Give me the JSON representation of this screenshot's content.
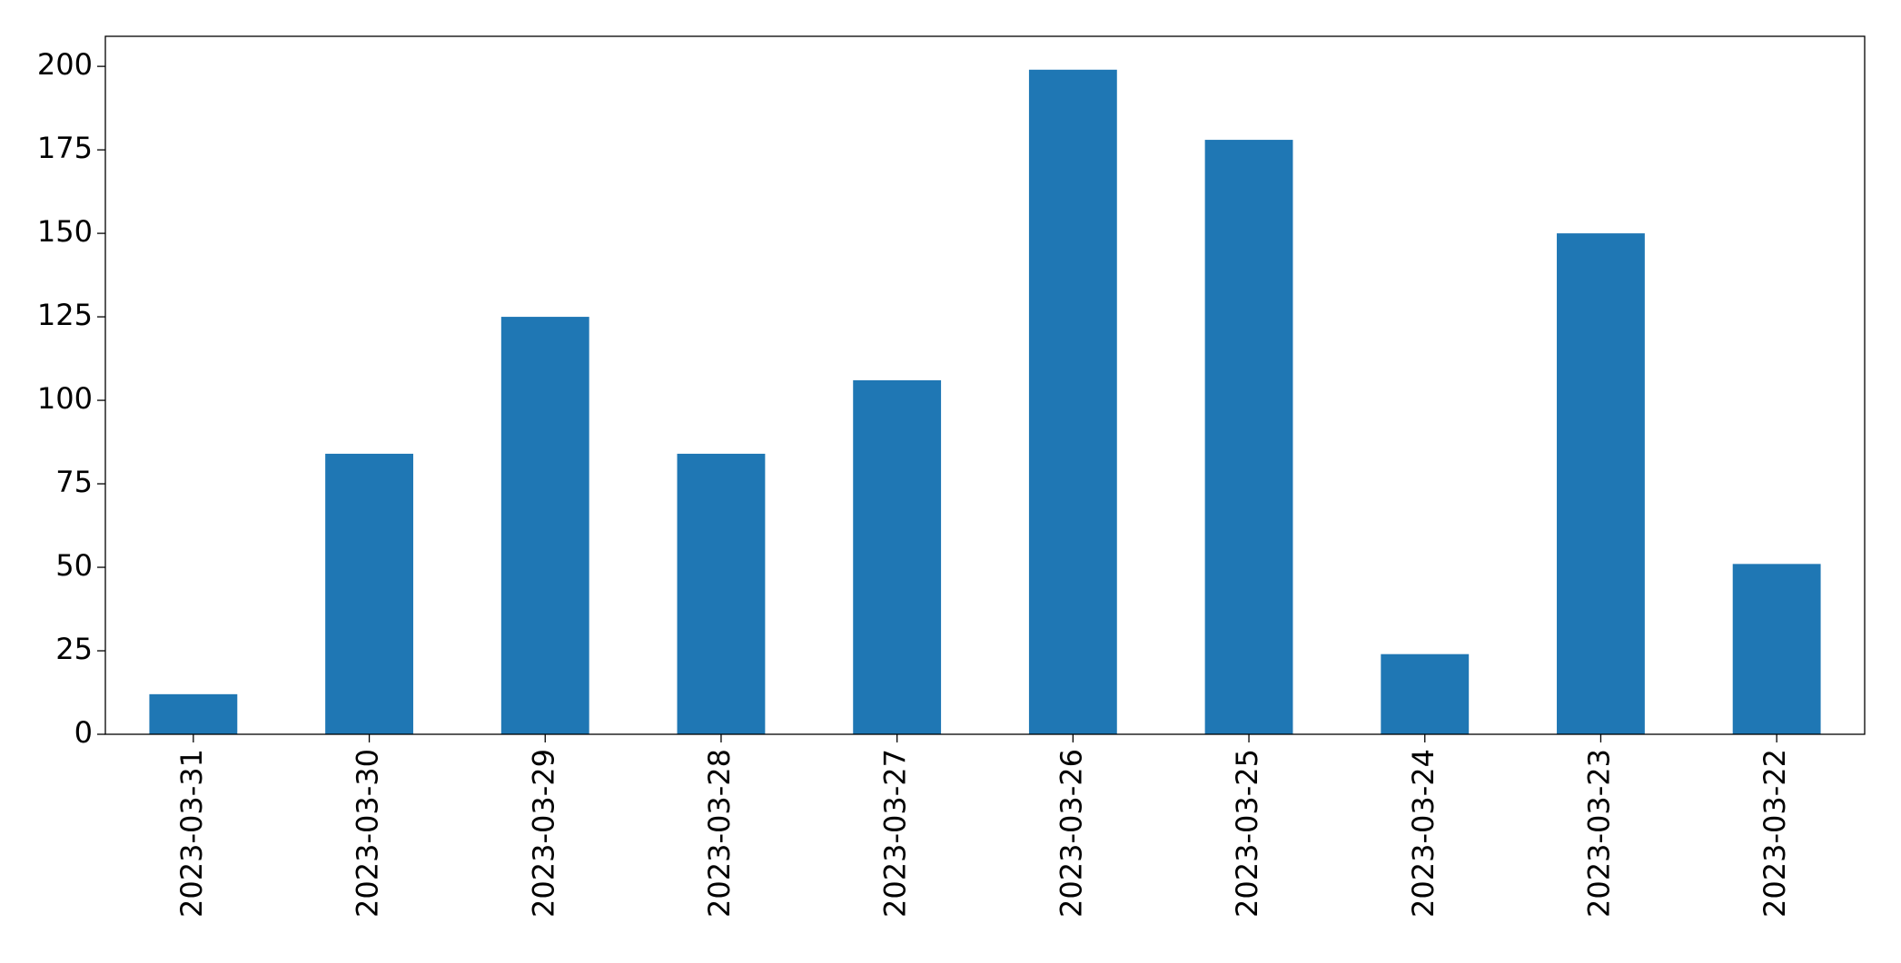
{
  "chart_data": {
    "type": "bar",
    "categories": [
      "2023-03-31",
      "2023-03-30",
      "2023-03-29",
      "2023-03-28",
      "2023-03-27",
      "2023-03-26",
      "2023-03-25",
      "2023-03-24",
      "2023-03-23",
      "2023-03-22"
    ],
    "values": [
      12,
      84,
      125,
      84,
      106,
      199,
      178,
      24,
      150,
      51
    ],
    "color": "#1f77b4",
    "ylim": [
      0,
      209
    ],
    "yticks": [
      0,
      25,
      50,
      75,
      100,
      125,
      150,
      175,
      200
    ],
    "grid": false
  }
}
